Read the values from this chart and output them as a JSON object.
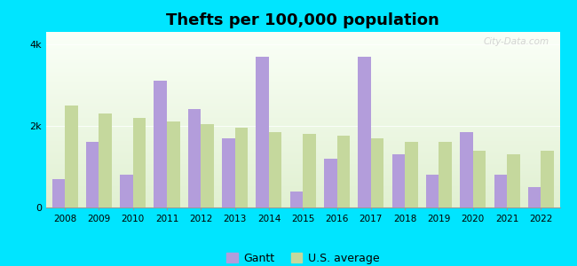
{
  "title": "Thefts per 100,000 population",
  "years": [
    2008,
    2009,
    2010,
    2011,
    2012,
    2013,
    2014,
    2015,
    2016,
    2017,
    2018,
    2019,
    2020,
    2021,
    2022
  ],
  "gantt": [
    700,
    1600,
    800,
    3100,
    2400,
    1700,
    3700,
    400,
    1200,
    3700,
    1300,
    800,
    1850,
    800,
    500
  ],
  "us_avg": [
    2500,
    2300,
    2200,
    2100,
    2050,
    1950,
    1850,
    1800,
    1750,
    1700,
    1600,
    1600,
    1400,
    1300,
    1400
  ],
  "gantt_color": "#b39ddb",
  "us_avg_color": "#c5d89d",
  "outer_bg": "#00e5ff",
  "ylim": [
    0,
    4300
  ],
  "yticks": [
    0,
    2000,
    4000
  ],
  "ytick_labels": [
    "0",
    "2k",
    "4k"
  ],
  "legend_gantt": "Gantt",
  "legend_us": "U.S. average",
  "title_fontsize": 13,
  "watermark": "City-Data.com"
}
